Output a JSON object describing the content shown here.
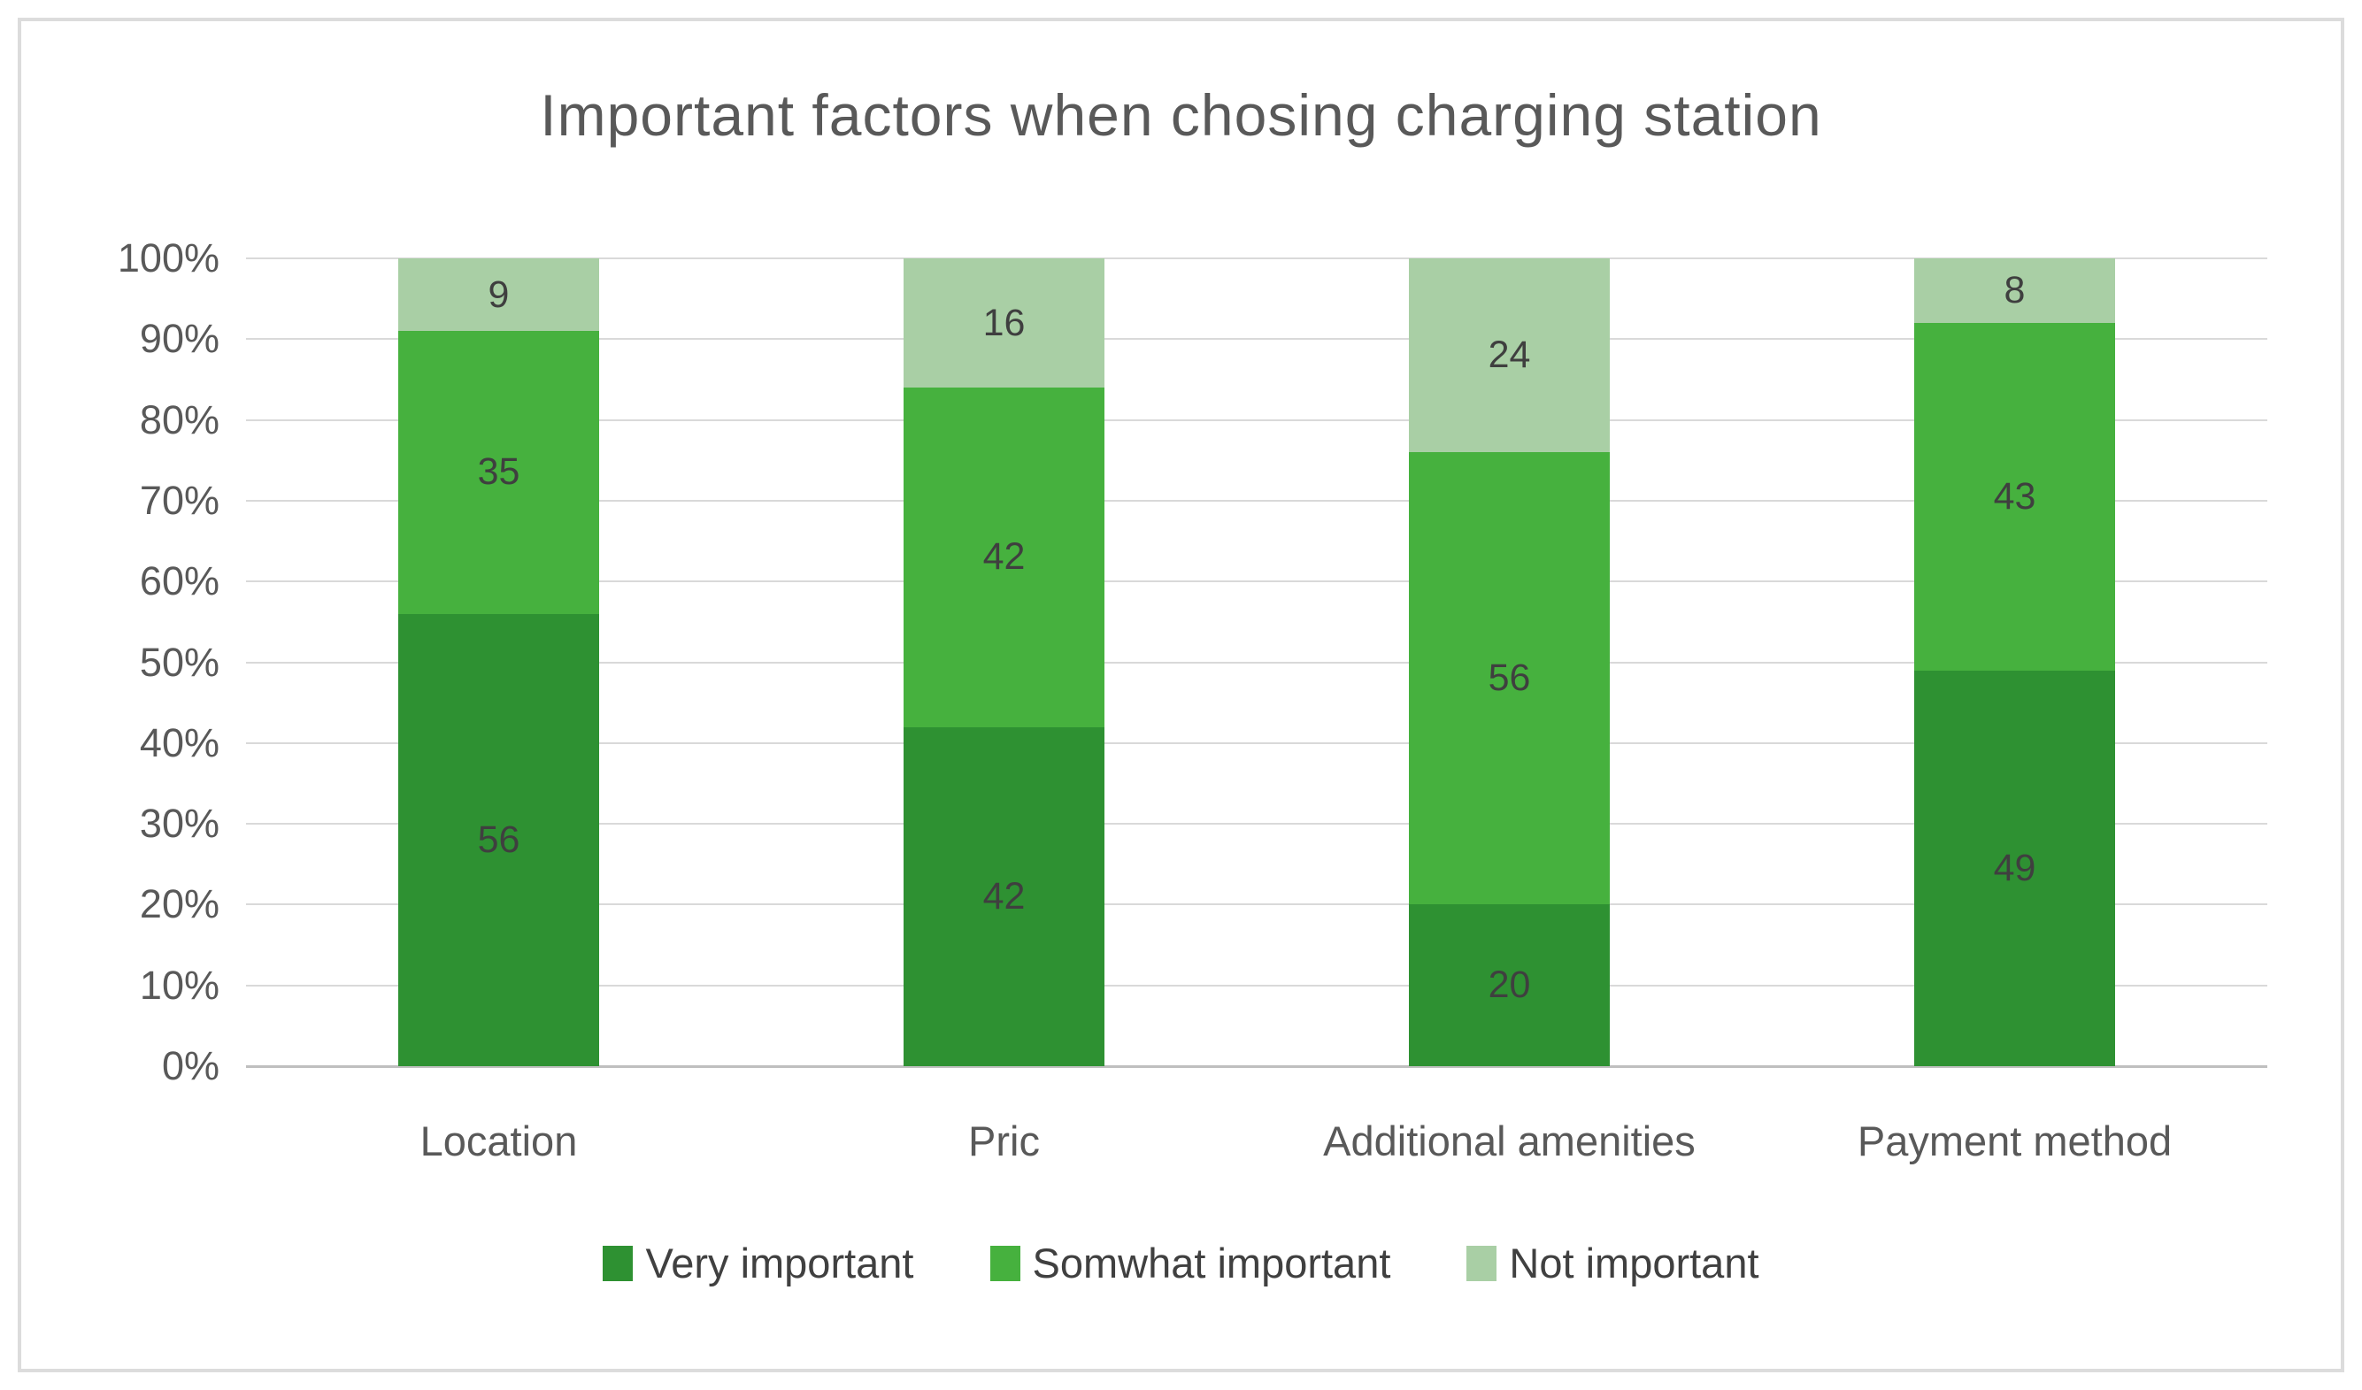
{
  "title": "Important factors when chosing charging station",
  "colors": {
    "very_important": "#2e9132",
    "somewhat_important": "#46b13e",
    "not_important": "#a9cfa5",
    "gridline": "#d9d9d9",
    "axis_line": "#bfbfbf",
    "title_text": "#595959",
    "tick_text": "#595959",
    "data_label_text": "#3f3f3f"
  },
  "chart_data": {
    "type": "bar",
    "subtype": "stacked-100-percent",
    "title": "Important factors when chosing charging station",
    "categories": [
      "Location",
      "Pric",
      "Additional amenities",
      "Payment method"
    ],
    "series": [
      {
        "name": "Very important",
        "color": "#2e9132",
        "values": [
          56,
          42,
          20,
          49
        ]
      },
      {
        "name": "Somwhat important",
        "color": "#46b13e",
        "values": [
          35,
          42,
          56,
          43
        ]
      },
      {
        "name": "Not important",
        "color": "#a9cfa5",
        "values": [
          9,
          16,
          24,
          8
        ]
      }
    ],
    "y_axis": {
      "min": 0,
      "max": 100,
      "tick_step": 10,
      "ticks": [
        "0%",
        "10%",
        "20%",
        "30%",
        "40%",
        "50%",
        "60%",
        "70%",
        "80%",
        "90%",
        "100%"
      ]
    },
    "xlabel": "",
    "ylabel": "",
    "grid": "horizontal",
    "legend_position": "bottom",
    "data_labels": true
  }
}
